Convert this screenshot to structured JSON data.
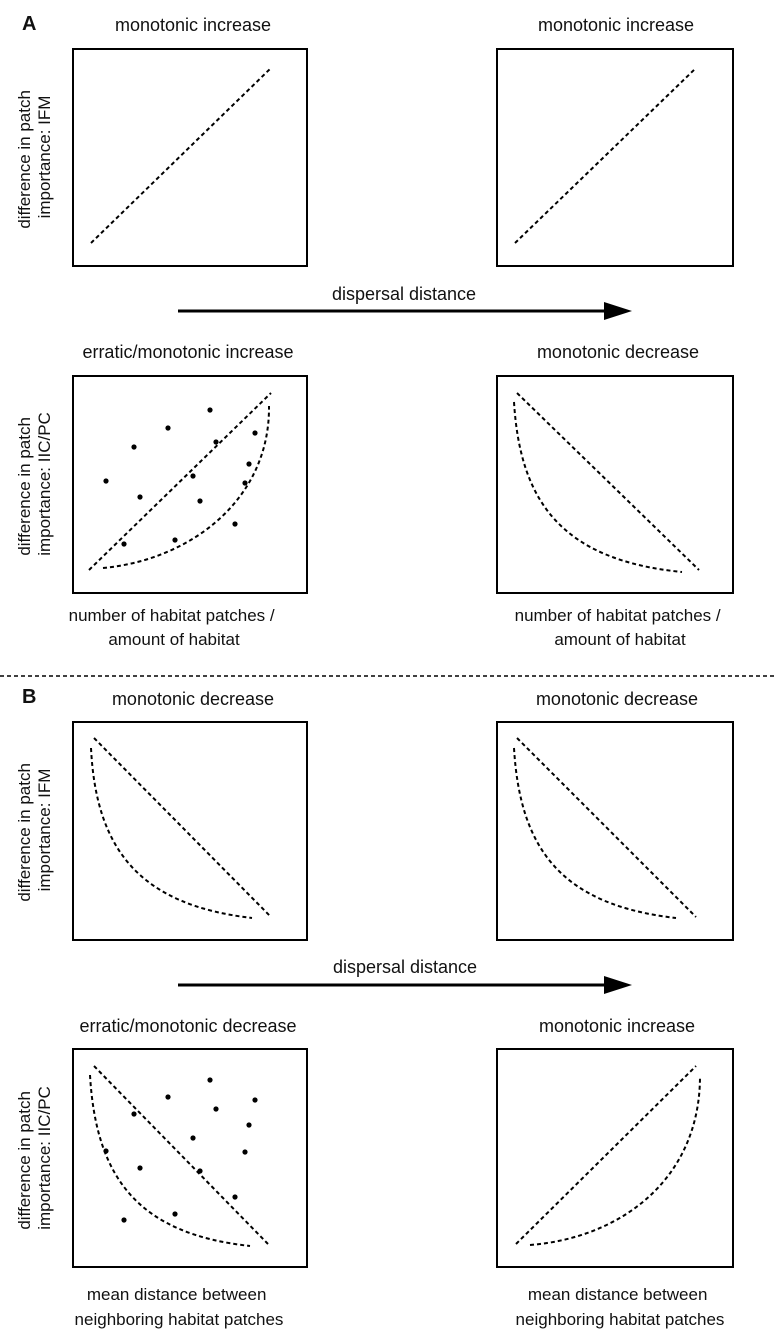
{
  "panel_A": {
    "letter": "A",
    "arrow_label": "dispersal distance",
    "top_left_title": "monotonic increase",
    "top_right_title": "monotonic increase",
    "bottom_left_title": "erratic/monotonic increase",
    "bottom_right_title": "monotonic decrease",
    "ylabel_top": [
      "difference in patch",
      "importance: IFM"
    ],
    "ylabel_bottom": [
      "difference in patch",
      "importance: IIC/PC"
    ],
    "xlabel_left": [
      "number of habitat patches /",
      "amount of habitat"
    ],
    "xlabel_right": [
      "number of habitat patches /",
      "amount of habitat"
    ]
  },
  "panel_B": {
    "letter": "B",
    "arrow_label": "dispersal distance",
    "top_left_title": "monotonic decrease",
    "top_right_title": "monotonic decrease",
    "bottom_left_title": "erratic/monotonic decrease",
    "bottom_right_title": "monotonic increase",
    "ylabel_top": [
      "difference in patch",
      "importance: IFM"
    ],
    "ylabel_bottom": [
      "difference in patch",
      "importance: IIC/PC"
    ],
    "xlabel_left": [
      "mean distance between",
      "neighboring habitat patches"
    ],
    "xlabel_right": [
      "mean distance between",
      "neighboring habitat patches"
    ]
  },
  "curve_shapes": {
    "increase_line": "straight dashed line rising left to right",
    "decrease_line": "straight dashed line falling left to right",
    "concave_increase": "dashed convex curve rising left to right",
    "convex_decrease": "dashed curve falling left to right"
  }
}
